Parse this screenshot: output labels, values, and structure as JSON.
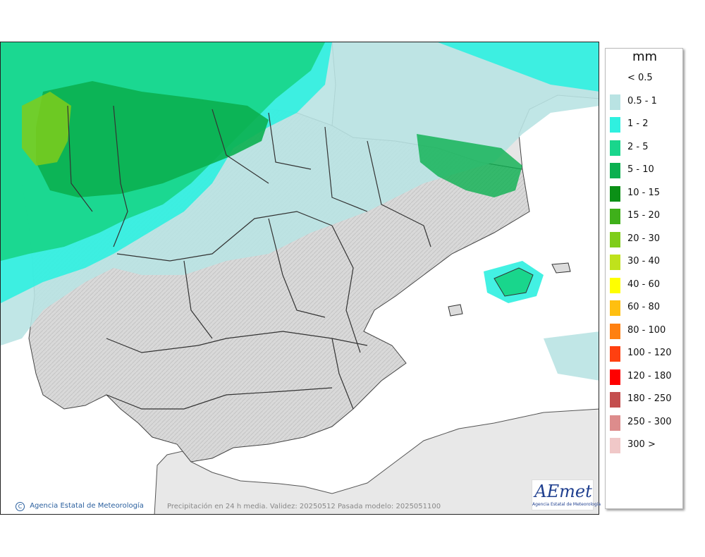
{
  "map": {
    "region": "Península Ibérica y Baleares",
    "caption": "Precipitación en 24 h media. Validez: 20250512 Pasada modelo: 2025051100",
    "copyright": "Agencia Estatal de Meteorología",
    "copyright_symbol": "C",
    "logo": {
      "text": "AEmet",
      "subtitle": "Agencia Estatal de Meteorología"
    }
  },
  "legend": {
    "title": "mm",
    "items": [
      {
        "label": "< 0.5",
        "color": ""
      },
      {
        "label": "0.5 - 1",
        "color": "#b9e3e3"
      },
      {
        "label": "1 - 2",
        "color": "#2ff0e0"
      },
      {
        "label": "2 - 5",
        "color": "#19d68c"
      },
      {
        "label": "5 - 10",
        "color": "#0bb050"
      },
      {
        "label": "10 - 15",
        "color": "#0b9016"
      },
      {
        "label": "15 - 20",
        "color": "#3fb01a"
      },
      {
        "label": "20 - 30",
        "color": "#7fcd1a"
      },
      {
        "label": "30 - 40",
        "color": "#bfe21c"
      },
      {
        "label": "40 - 60",
        "color": "#ffff00"
      },
      {
        "label": "60 - 80",
        "color": "#ffbf10"
      },
      {
        "label": "80 - 100",
        "color": "#ff8010"
      },
      {
        "label": "100 - 120",
        "color": "#ff4010"
      },
      {
        "label": "120 - 180",
        "color": "#ff0000"
      },
      {
        "label": "180 - 250",
        "color": "#c44f4f"
      },
      {
        "label": "250 - 300",
        "color": "#dd8c8c"
      },
      {
        "label": "300 >",
        "color": "#f0c8c8"
      }
    ]
  },
  "colors": {
    "sea": "#ffffff",
    "land": "#dcdcdc",
    "border": "#333333"
  }
}
